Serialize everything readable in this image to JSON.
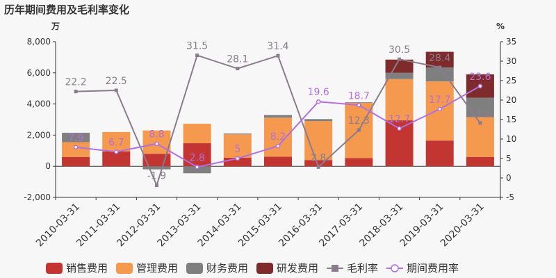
{
  "chart_data": {
    "type": "bar",
    "title": "历年期间费用及毛利率变化",
    "y_left_unit": "万",
    "y_right_unit": "%",
    "y_left_ticks": [
      "-2,000",
      "0",
      "2,000",
      "4,000",
      "6,000",
      "8,000"
    ],
    "y_right_ticks": [
      "-5",
      "0",
      "5",
      "10",
      "15",
      "20",
      "25",
      "30",
      "35"
    ],
    "ylim_left": [
      -2000,
      8000
    ],
    "ylim_right": [
      -5,
      35
    ],
    "categories": [
      "2010-03-31",
      "2011-03-31",
      "2012-03-31",
      "2013-03-31",
      "2014-03-31",
      "2015-03-31",
      "2016-03-31",
      "2017-03-31",
      "2018-03-31",
      "2019-03-31",
      "2020-03-31"
    ],
    "bar_series": [
      {
        "name": "销售费用",
        "color": "#c23531",
        "values": [
          600,
          950,
          800,
          1480,
          550,
          620,
          400,
          520,
          2950,
          1650,
          600
        ]
      },
      {
        "name": "管理费用",
        "color": "#f5994e",
        "values": [
          950,
          1250,
          1500,
          1250,
          1500,
          2500,
          2500,
          3550,
          2650,
          3800,
          2550
        ]
      },
      {
        "name": "财务费用",
        "color": "#7f7f7f",
        "values": [
          600,
          0,
          -200,
          -450,
          50,
          170,
          130,
          40,
          400,
          900,
          1250
        ]
      },
      {
        "name": "研发费用",
        "color": "#7f2a2b",
        "values": [
          0,
          0,
          0,
          0,
          0,
          0,
          0,
          0,
          850,
          1000,
          1500
        ]
      }
    ],
    "line_series": [
      {
        "name": "毛利率",
        "color": "#8a7c8c",
        "marker": "square",
        "values": [
          22.2,
          22.5,
          -1.9,
          31.5,
          28.1,
          31.4,
          2.8,
          12.3,
          30.5,
          28.4,
          14.1
        ],
        "labels": [
          "22.2",
          "22.5",
          "-1.9",
          "31.5",
          "28.1",
          "31.4",
          "2.8",
          "12.3",
          "30.5",
          "28.4",
          "14.1"
        ]
      },
      {
        "name": "期间费用率",
        "color": "#b36ee0",
        "marker": "circle",
        "values": [
          7.9,
          6.7,
          8.8,
          2.8,
          5,
          8.2,
          19.6,
          18.7,
          12.7,
          17.7,
          23.6
        ],
        "labels": [
          "7.9",
          "6.7",
          "8.8",
          "2.8",
          "5",
          "8.2",
          "19.6",
          "18.7",
          "12.7",
          "17.7",
          "23.6"
        ]
      }
    ],
    "legend_position": "bottom"
  }
}
